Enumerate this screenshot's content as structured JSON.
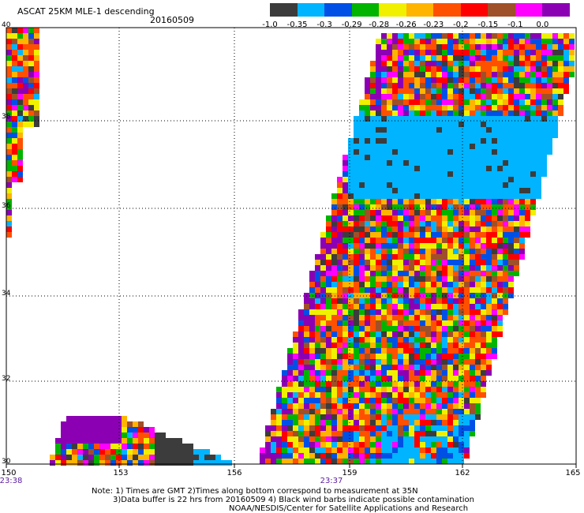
{
  "header": {
    "title": "ASCAT 25KM MLE-1 descending",
    "date": "20160509"
  },
  "colorbar": {
    "labels": [
      "-1.0",
      "-0.35",
      "-0.3",
      "-0.29",
      "-0.28",
      "-0.26",
      "-0.23",
      "-0.2",
      "-0.15",
      "-0.1",
      "0.0"
    ],
    "colors": [
      "#3c3c3c",
      "#00b4ff",
      "#0050e6",
      "#00b400",
      "#f0f000",
      "#ffb400",
      "#ff5000",
      "#ff0000",
      "#a05028",
      "#ff00ff",
      "#8c00b4"
    ]
  },
  "axes": {
    "lat_labels": [
      "40",
      "38",
      "36",
      "34",
      "32",
      "30"
    ],
    "lon_labels": [
      "150",
      "153",
      "156",
      "159",
      "162",
      "165"
    ],
    "time_labels": [
      "23:38",
      "23:37"
    ]
  },
  "footer": {
    "line1": "Note: 1) Times are GMT 2)Times along bottom correspond to measurement at 35N",
    "line2": "3)Data buffer is 22 hrs from 20160509 4) Black wind barbs indicate possible contamination",
    "line3": "NOAA/NESDIS/Center for Satellite Applications and Research"
  }
}
